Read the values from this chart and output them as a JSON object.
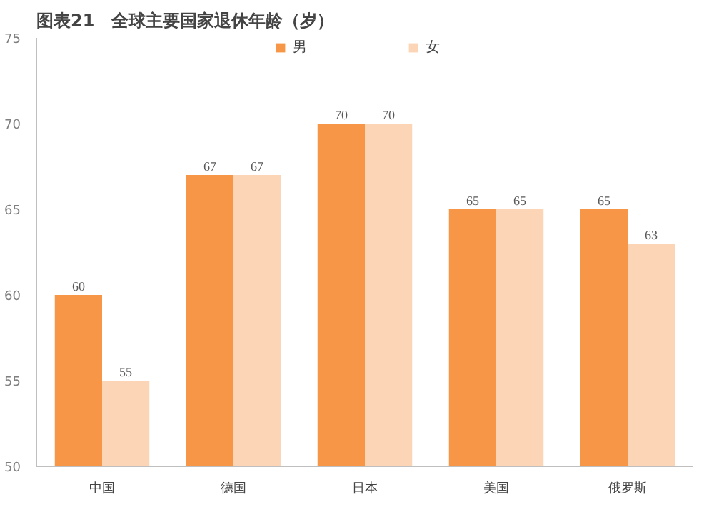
{
  "chart_data": {
    "type": "bar",
    "title": "图表21　全球主要国家退休年龄（岁）",
    "categories": [
      "中国",
      "德国",
      "日本",
      "美国",
      "俄罗斯"
    ],
    "series": [
      {
        "name": "男",
        "color": "#f79646",
        "values": [
          60,
          67,
          70,
          65,
          65
        ]
      },
      {
        "name": "女",
        "color": "#fbd5b5",
        "values": [
          55,
          67,
          70,
          65,
          63
        ]
      }
    ],
    "ylim": [
      50,
      75
    ],
    "yticks": [
      50,
      55,
      60,
      65,
      70,
      75
    ],
    "grid": false,
    "legend": "top",
    "data_labels": true
  }
}
